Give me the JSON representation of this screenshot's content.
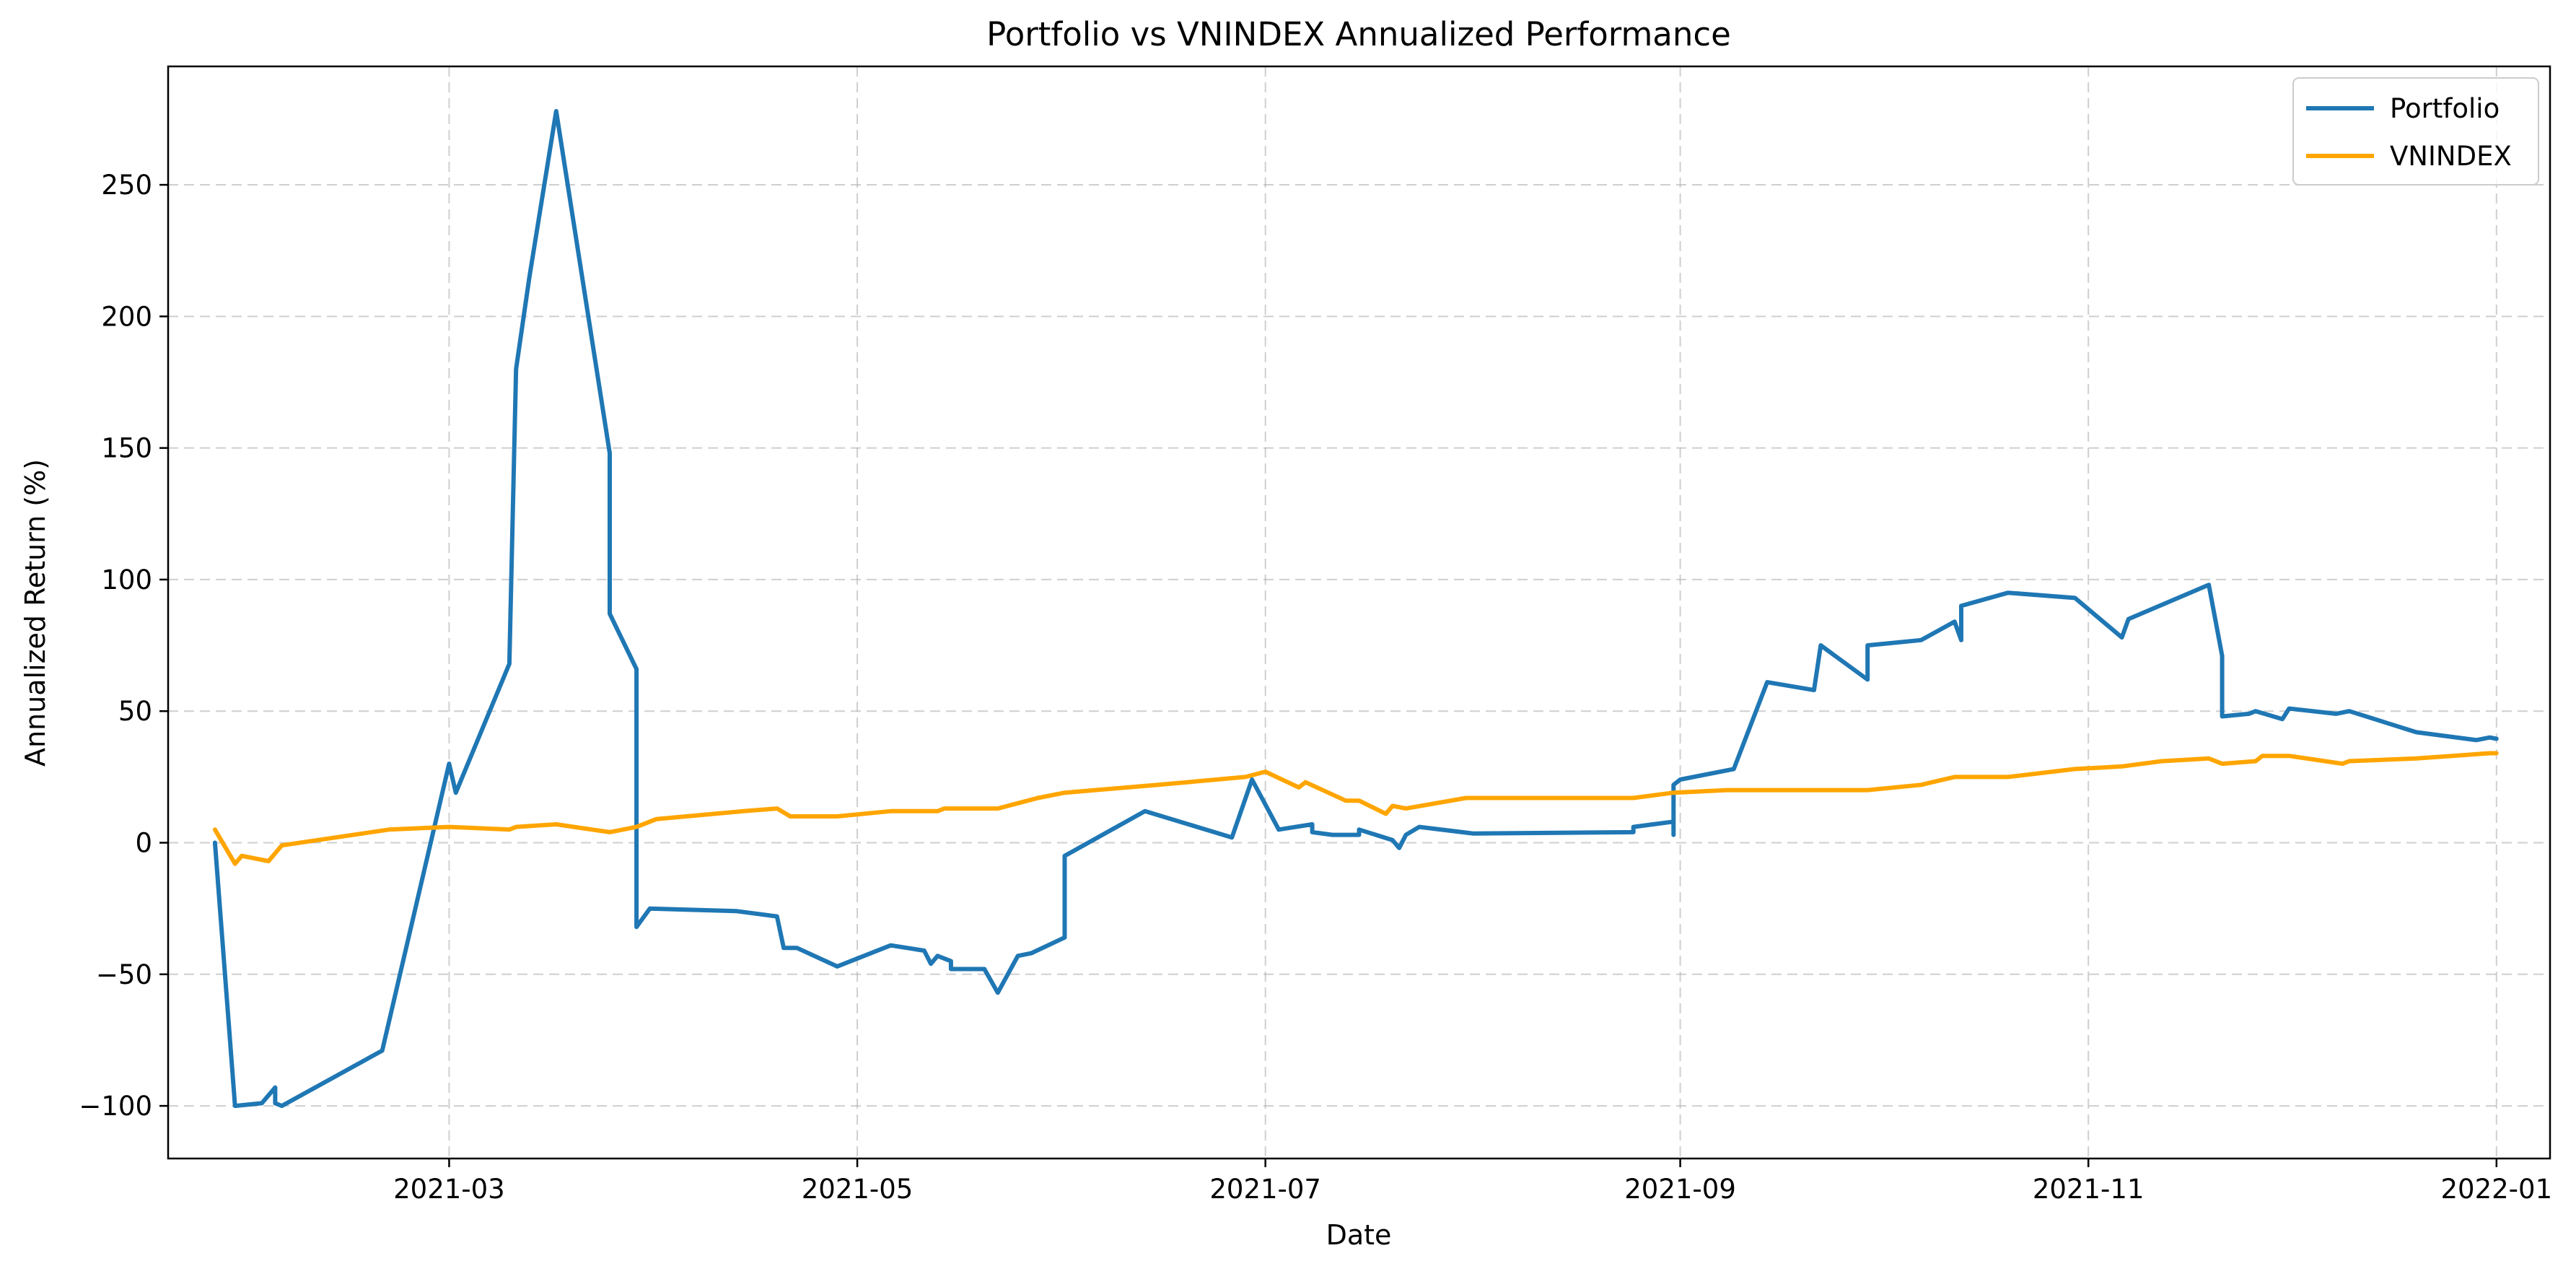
{
  "chart_data": {
    "type": "line",
    "title": "Portfolio vs VNINDEX Annualized Performance",
    "xlabel": "Date",
    "ylabel": "Annualized Return (%)",
    "x_axis_type": "date",
    "xlim": [
      "2021-01-18",
      "2022-01-09"
    ],
    "ylim": [
      -120,
      295
    ],
    "xticks": [
      "2021-03-01",
      "2021-05-01",
      "2021-07-01",
      "2021-09-01",
      "2021-11-01",
      "2022-01-01"
    ],
    "xtick_labels": [
      "2021-03",
      "2021-05",
      "2021-07",
      "2021-09",
      "2021-11",
      "2022-01"
    ],
    "yticks": [
      -100,
      -50,
      0,
      50,
      100,
      150,
      200,
      250
    ],
    "ytick_labels": [
      "−100",
      "−50",
      "0",
      "50",
      "100",
      "150",
      "200",
      "250"
    ],
    "grid": true,
    "legend_position": "top-right",
    "series": [
      {
        "name": "Portfolio",
        "color": "#1f77b4",
        "points": [
          [
            "2021-01-25",
            0
          ],
          [
            "2021-01-28",
            -100
          ],
          [
            "2021-02-01",
            -99
          ],
          [
            "2021-02-03",
            -93
          ],
          [
            "2021-02-03",
            -99
          ],
          [
            "2021-02-04",
            -100
          ],
          [
            "2021-02-19",
            -79
          ],
          [
            "2021-03-01",
            30
          ],
          [
            "2021-03-02",
            19
          ],
          [
            "2021-03-10",
            68
          ],
          [
            "2021-03-11",
            180
          ],
          [
            "2021-03-13",
            215
          ],
          [
            "2021-03-17",
            278
          ],
          [
            "2021-03-25",
            148
          ],
          [
            "2021-03-25",
            87
          ],
          [
            "2021-03-29",
            66
          ],
          [
            "2021-03-29",
            -32
          ],
          [
            "2021-03-31",
            -25
          ],
          [
            "2021-04-13",
            -26
          ],
          [
            "2021-04-19",
            -28
          ],
          [
            "2021-04-20",
            -40
          ],
          [
            "2021-04-22",
            -40
          ],
          [
            "2021-04-28",
            -47
          ],
          [
            "2021-05-06",
            -39
          ],
          [
            "2021-05-11",
            -41
          ],
          [
            "2021-05-12",
            -46
          ],
          [
            "2021-05-13",
            -43
          ],
          [
            "2021-05-15",
            -45
          ],
          [
            "2021-05-15",
            -48
          ],
          [
            "2021-05-20",
            -48
          ],
          [
            "2021-05-22",
            -57
          ],
          [
            "2021-05-25",
            -43
          ],
          [
            "2021-05-27",
            -42
          ],
          [
            "2021-06-01",
            -36
          ],
          [
            "2021-06-01",
            -5
          ],
          [
            "2021-06-13",
            12
          ],
          [
            "2021-06-26",
            2
          ],
          [
            "2021-06-29",
            24
          ],
          [
            "2021-07-03",
            5
          ],
          [
            "2021-07-08",
            7
          ],
          [
            "2021-07-08",
            4
          ],
          [
            "2021-07-11",
            3
          ],
          [
            "2021-07-15",
            3
          ],
          [
            "2021-07-15",
            5
          ],
          [
            "2021-07-20",
            1
          ],
          [
            "2021-07-21",
            -2
          ],
          [
            "2021-07-22",
            3
          ],
          [
            "2021-07-24",
            6
          ],
          [
            "2021-08-01",
            3.5
          ],
          [
            "2021-08-25",
            4
          ],
          [
            "2021-08-25",
            6
          ],
          [
            "2021-08-31",
            8
          ],
          [
            "2021-08-31",
            3
          ],
          [
            "2021-08-31",
            22
          ],
          [
            "2021-09-01",
            24
          ],
          [
            "2021-09-09",
            28
          ],
          [
            "2021-09-14",
            61
          ],
          [
            "2021-09-21",
            58
          ],
          [
            "2021-09-22",
            75
          ],
          [
            "2021-09-29",
            62
          ],
          [
            "2021-09-29",
            75
          ],
          [
            "2021-10-07",
            77
          ],
          [
            "2021-10-12",
            84
          ],
          [
            "2021-10-13",
            77
          ],
          [
            "2021-10-13",
            90
          ],
          [
            "2021-10-20",
            95
          ],
          [
            "2021-10-30",
            93
          ],
          [
            "2021-11-06",
            78
          ],
          [
            "2021-11-07",
            85
          ],
          [
            "2021-11-19",
            98
          ],
          [
            "2021-11-21",
            71
          ],
          [
            "2021-11-21",
            48
          ],
          [
            "2021-11-25",
            49
          ],
          [
            "2021-11-26",
            50
          ],
          [
            "2021-11-30",
            47
          ],
          [
            "2021-12-01",
            51
          ],
          [
            "2021-12-08",
            49
          ],
          [
            "2021-12-10",
            50
          ],
          [
            "2021-12-15",
            46
          ],
          [
            "2021-12-20",
            42
          ],
          [
            "2021-12-29",
            39
          ],
          [
            "2021-12-31",
            40
          ],
          [
            "2022-01-01",
            39.5
          ]
        ]
      },
      {
        "name": "VNINDEX",
        "color": "#ffa500",
        "points": [
          [
            "2021-01-25",
            5
          ],
          [
            "2021-01-28",
            -8
          ],
          [
            "2021-01-29",
            -5
          ],
          [
            "2021-02-02",
            -7
          ],
          [
            "2021-02-04",
            -1
          ],
          [
            "2021-02-20",
            5
          ],
          [
            "2021-03-01",
            6
          ],
          [
            "2021-03-10",
            5
          ],
          [
            "2021-03-11",
            6
          ],
          [
            "2021-03-17",
            7
          ],
          [
            "2021-03-25",
            4
          ],
          [
            "2021-03-29",
            6
          ],
          [
            "2021-04-01",
            9
          ],
          [
            "2021-04-14",
            12
          ],
          [
            "2021-04-19",
            13
          ],
          [
            "2021-04-21",
            10
          ],
          [
            "2021-04-28",
            10
          ],
          [
            "2021-05-06",
            12
          ],
          [
            "2021-05-13",
            12
          ],
          [
            "2021-05-14",
            13
          ],
          [
            "2021-05-22",
            13
          ],
          [
            "2021-05-25",
            15
          ],
          [
            "2021-05-28",
            17
          ],
          [
            "2021-06-01",
            19
          ],
          [
            "2021-06-15",
            22
          ],
          [
            "2021-06-28",
            25
          ],
          [
            "2021-07-01",
            27
          ],
          [
            "2021-07-06",
            21
          ],
          [
            "2021-07-07",
            23
          ],
          [
            "2021-07-13",
            16
          ],
          [
            "2021-07-15",
            16
          ],
          [
            "2021-07-19",
            11
          ],
          [
            "2021-07-20",
            14
          ],
          [
            "2021-07-22",
            13
          ],
          [
            "2021-07-31",
            17
          ],
          [
            "2021-08-25",
            17
          ],
          [
            "2021-08-31",
            19
          ],
          [
            "2021-09-08",
            20
          ],
          [
            "2021-09-20",
            20
          ],
          [
            "2021-09-23",
            20
          ],
          [
            "2021-09-29",
            20
          ],
          [
            "2021-10-07",
            22
          ],
          [
            "2021-10-12",
            25
          ],
          [
            "2021-10-20",
            25
          ],
          [
            "2021-10-30",
            28
          ],
          [
            "2021-11-06",
            29
          ],
          [
            "2021-11-12",
            31
          ],
          [
            "2021-11-19",
            32
          ],
          [
            "2021-11-21",
            30
          ],
          [
            "2021-11-26",
            31
          ],
          [
            "2021-11-27",
            33
          ],
          [
            "2021-12-01",
            33
          ],
          [
            "2021-12-09",
            30
          ],
          [
            "2021-12-10",
            31
          ],
          [
            "2021-12-20",
            32
          ],
          [
            "2021-12-31",
            34
          ],
          [
            "2022-01-01",
            34
          ]
        ]
      }
    ]
  }
}
